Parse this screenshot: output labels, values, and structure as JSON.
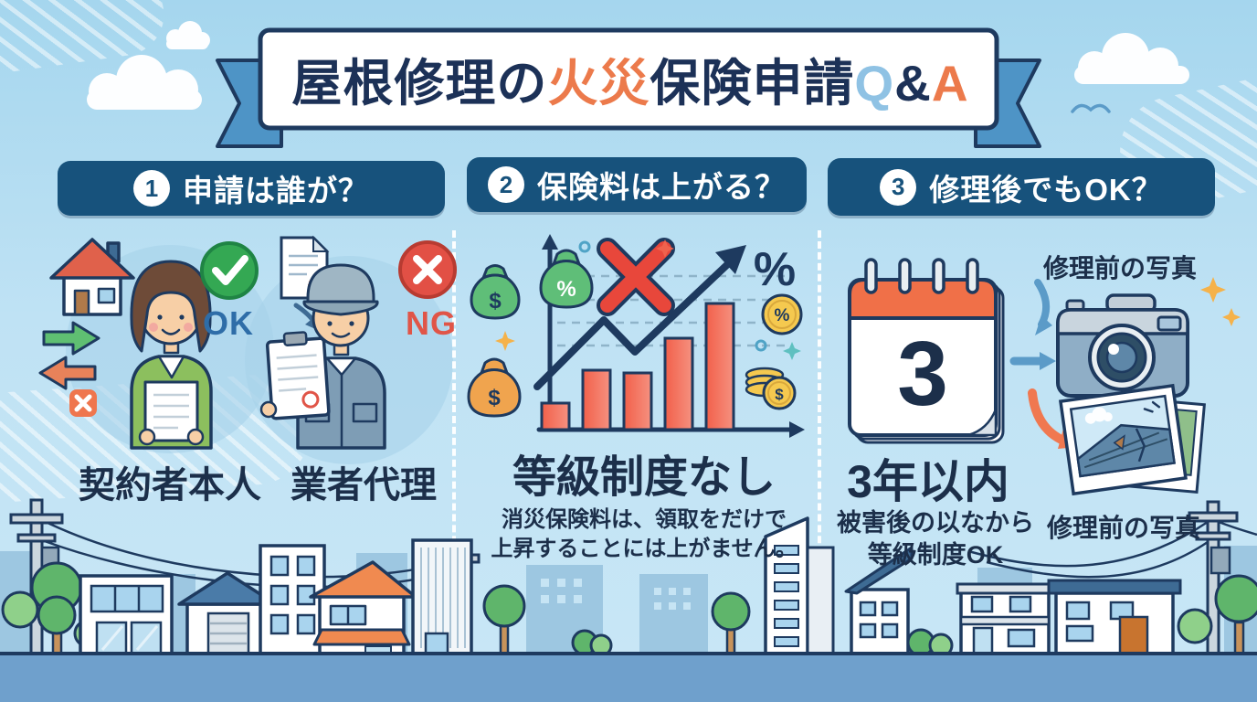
{
  "title": {
    "prefix": "屋根修理の",
    "highlight": "火災",
    "suffix": "保険申請",
    "q": "Q",
    "amp": "&",
    "a": "A"
  },
  "sections": [
    {
      "number": "1",
      "heading": "申請は誰が？",
      "ok_label": "OK",
      "ng_label": "NG",
      "left_label": "契約者本人",
      "right_label": "業者代理"
    },
    {
      "number": "2",
      "heading": "保険料は上がる？",
      "main_label": "等級制度なし",
      "note_line1": "消災保険料は、領取をだけで",
      "note_line2": "上昇することには上がません。",
      "dollar": "$",
      "percent": "%"
    },
    {
      "number": "3",
      "heading": "修理後でもOK？",
      "calendar_number": "3",
      "photo_caption_top": "修理前の写真",
      "main_label": "3年以内",
      "note_line1": "被害後の以なから",
      "note_line2": "等級制度OK",
      "photo_caption_bottom": "修理前の写真"
    }
  ],
  "chart_data": {
    "type": "bar",
    "categories": [
      "",
      "",
      "",
      "",
      ""
    ],
    "values": [
      29,
      65,
      62,
      100,
      138
    ],
    "value_note": "decorative bars, no numeric labels shown; heights relative (px)",
    "title": "",
    "xlabel": "",
    "ylabel": "",
    "grid": true,
    "overlays": [
      "rising zigzag trend arrow",
      "large red X",
      "dashed gridlines",
      "money bags",
      "coins",
      "percent signs"
    ]
  },
  "colors": {
    "navy": "#1c3157",
    "outline": "#1e3a5f",
    "orange": "#ec7a4b",
    "coral_bar": "#f2604a",
    "red": "#e25045",
    "green": "#34a853",
    "header_blue": "#17527c",
    "ribbon_blue": "#4e94c6",
    "sky": "#b5ddf2",
    "ok_blue": "#2e6da8",
    "ng_red": "#e05548",
    "gold": "#f5c94f",
    "bag_green": "#5fbe78",
    "bag_orange": "#f0a44e",
    "ground": "#6fa0cc",
    "calendar_orange": "#f07048"
  }
}
